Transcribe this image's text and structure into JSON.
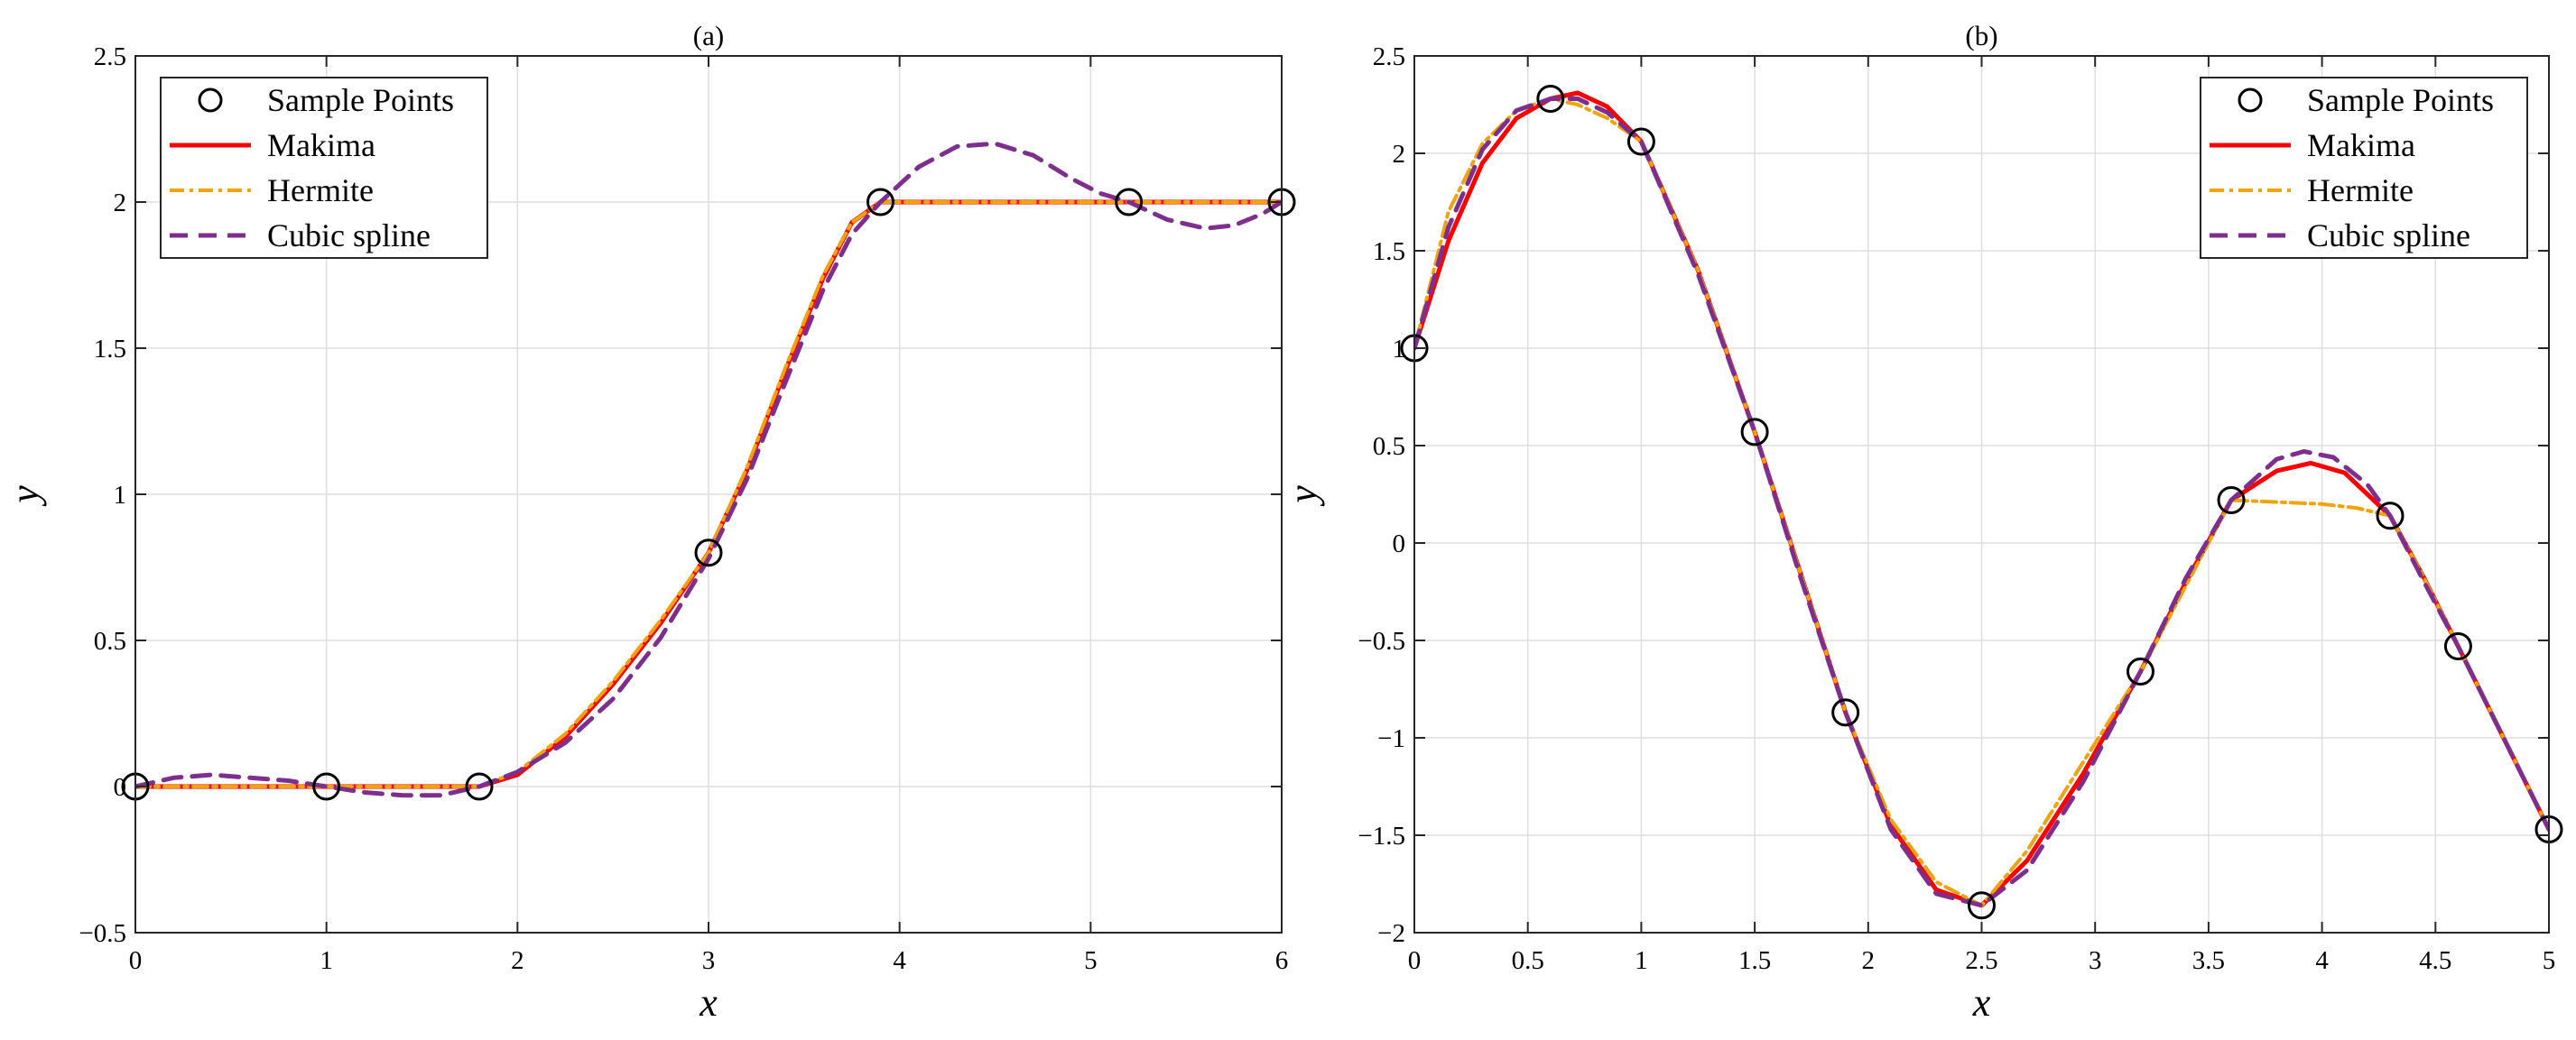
{
  "figure": {
    "background": "#ffffff",
    "grid": true,
    "legend_labels": [
      "Sample Points",
      "Makima",
      "Hermite",
      "Cubic spline"
    ],
    "legend_placement": [
      "top-left",
      "top-right"
    ],
    "colors": {
      "makima": "#ff0000",
      "hermite": "#f0a30a",
      "spline": "#7e2f8e",
      "samples": "#000000"
    }
  },
  "chart_data": [
    {
      "type": "line",
      "title": "(a)",
      "xlabel": "x",
      "ylabel": "y",
      "xlim": [
        0,
        6
      ],
      "ylim": [
        -0.5,
        2.5
      ],
      "xticks": [
        0,
        1,
        2,
        3,
        4,
        5,
        6
      ],
      "yticks": [
        -0.5,
        0,
        0.5,
        1,
        1.5,
        2,
        2.5
      ],
      "xticklabels": [
        "0",
        "1",
        "2",
        "3",
        "4",
        "5",
        "6"
      ],
      "yticklabels": [
        "−0.5",
        "0",
        "0.5",
        "1",
        "1.5",
        "2",
        "2.5"
      ],
      "grid": true,
      "legend": "top-left",
      "sample_points": {
        "x": [
          0,
          1,
          1.8,
          3,
          3.9,
          5.2,
          6
        ],
        "y": [
          0,
          0,
          0,
          0.8,
          2,
          2,
          2
        ]
      },
      "series": [
        {
          "name": "Makima",
          "x": [
            0,
            1,
            1.8,
            2,
            2.25,
            2.5,
            2.75,
            3,
            3.2,
            3.4,
            3.6,
            3.75,
            3.9,
            4.5,
            5.2,
            6
          ],
          "y": [
            0,
            0,
            0,
            0.04,
            0.17,
            0.35,
            0.56,
            0.8,
            1.08,
            1.42,
            1.74,
            1.93,
            2,
            2,
            2,
            2
          ]
        },
        {
          "name": "Hermite",
          "x": [
            0,
            1,
            1.8,
            2,
            2.25,
            2.5,
            2.75,
            3,
            3.2,
            3.4,
            3.6,
            3.75,
            3.9,
            4.5,
            5.2,
            6
          ],
          "y": [
            0,
            0,
            0,
            0.05,
            0.18,
            0.36,
            0.57,
            0.8,
            1.09,
            1.43,
            1.75,
            1.93,
            2,
            2,
            2,
            2
          ]
        },
        {
          "name": "Cubic spline",
          "x": [
            0,
            0.2,
            0.4,
            0.6,
            0.8,
            1,
            1.2,
            1.4,
            1.6,
            1.8,
            2,
            2.25,
            2.5,
            2.75,
            3,
            3.2,
            3.4,
            3.6,
            3.75,
            3.9,
            4.1,
            4.3,
            4.5,
            4.7,
            4.9,
            5.05,
            5.2,
            5.4,
            5.6,
            5.75,
            5.9,
            6
          ],
          "y": [
            0,
            0.03,
            0.04,
            0.03,
            0.02,
            0,
            -0.02,
            -0.03,
            -0.03,
            0,
            0.05,
            0.15,
            0.3,
            0.51,
            0.78,
            1.05,
            1.38,
            1.7,
            1.89,
            2,
            2.12,
            2.19,
            2.2,
            2.16,
            2.08,
            2.03,
            2,
            1.94,
            1.91,
            1.92,
            1.96,
            2
          ]
        }
      ]
    },
    {
      "type": "line",
      "title": "(b)",
      "xlabel": "x",
      "ylabel": "y",
      "xlim": [
        0,
        5
      ],
      "ylim": [
        -2,
        2.5
      ],
      "xticks": [
        0,
        0.5,
        1,
        1.5,
        2,
        2.5,
        3,
        3.5,
        4,
        4.5,
        5
      ],
      "yticks": [
        -2,
        -1.5,
        -1,
        -0.5,
        0,
        0.5,
        1,
        1.5,
        2,
        2.5
      ],
      "xticklabels": [
        "0",
        "0.5",
        "1",
        "1.5",
        "2",
        "2.5",
        "3",
        "3.5",
        "4",
        "4.5",
        "5"
      ],
      "yticklabels": [
        "−2",
        "−1.5",
        "−1",
        "−0.5",
        "0",
        "0.5",
        "1",
        "1.5",
        "2",
        "2.5"
      ],
      "grid": true,
      "legend": "top-right",
      "sample_points": {
        "x": [
          0,
          0.6,
          1,
          1.5,
          1.9,
          2.5,
          3.2,
          3.6,
          4.3,
          4.6,
          5
        ],
        "y": [
          1,
          2.28,
          2.06,
          0.57,
          -0.87,
          -1.86,
          -0.66,
          0.22,
          0.14,
          -0.53,
          -1.47
        ]
      },
      "series": [
        {
          "name": "Makima",
          "x": [
            0,
            0.15,
            0.3,
            0.45,
            0.6,
            0.72,
            0.85,
            1,
            1.25,
            1.5,
            1.7,
            1.9,
            2.1,
            2.3,
            2.5,
            2.7,
            2.95,
            3.2,
            3.4,
            3.6,
            3.8,
            3.95,
            4.1,
            4.3,
            4.45,
            4.6,
            4.8,
            5
          ],
          "y": [
            1,
            1.55,
            1.95,
            2.18,
            2.28,
            2.31,
            2.24,
            2.06,
            1.4,
            0.57,
            -0.15,
            -0.87,
            -1.45,
            -1.78,
            -1.86,
            -1.63,
            -1.18,
            -0.66,
            -0.2,
            0.22,
            0.37,
            0.41,
            0.36,
            0.14,
            -0.18,
            -0.53,
            -1.0,
            -1.47
          ]
        },
        {
          "name": "Hermite",
          "x": [
            0,
            0.15,
            0.3,
            0.45,
            0.6,
            0.72,
            0.85,
            1,
            1.25,
            1.5,
            1.7,
            1.9,
            2.1,
            2.3,
            2.5,
            2.7,
            2.95,
            3.2,
            3.4,
            3.6,
            3.8,
            4,
            4.15,
            4.3,
            4.45,
            4.6,
            4.8,
            5
          ],
          "y": [
            1,
            1.7,
            2.05,
            2.22,
            2.28,
            2.25,
            2.18,
            2.06,
            1.4,
            0.57,
            -0.15,
            -0.87,
            -1.42,
            -1.74,
            -1.86,
            -1.58,
            -1.12,
            -0.66,
            -0.22,
            0.22,
            0.21,
            0.2,
            0.18,
            0.14,
            -0.18,
            -0.53,
            -1.0,
            -1.47
          ]
        },
        {
          "name": "Cubic spline",
          "x": [
            0,
            0.15,
            0.3,
            0.45,
            0.6,
            0.72,
            0.85,
            1,
            1.25,
            1.5,
            1.7,
            1.9,
            2.1,
            2.3,
            2.5,
            2.7,
            2.95,
            3.2,
            3.4,
            3.6,
            3.8,
            3.92,
            4.05,
            4.2,
            4.3,
            4.45,
            4.6,
            4.8,
            5
          ],
          "y": [
            1,
            1.62,
            2.02,
            2.22,
            2.28,
            2.28,
            2.21,
            2.06,
            1.38,
            0.57,
            -0.17,
            -0.87,
            -1.47,
            -1.8,
            -1.86,
            -1.68,
            -1.22,
            -0.66,
            -0.18,
            0.22,
            0.43,
            0.47,
            0.44,
            0.3,
            0.14,
            -0.2,
            -0.53,
            -1.0,
            -1.47
          ]
        }
      ]
    }
  ]
}
